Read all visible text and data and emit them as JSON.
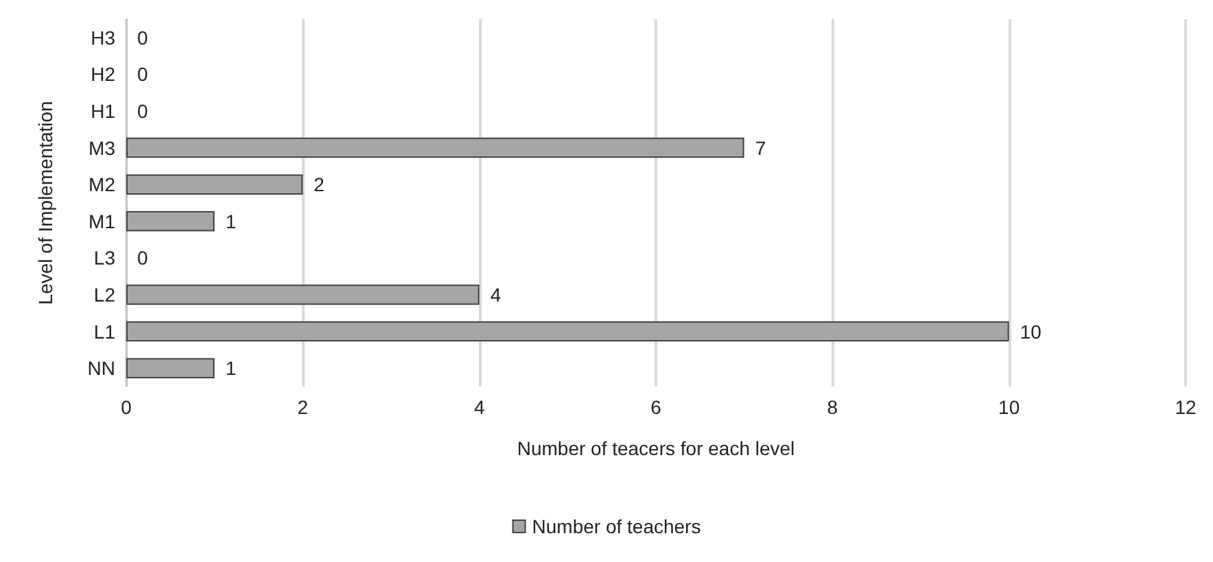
{
  "chart_data": {
    "type": "bar",
    "orientation": "horizontal",
    "xlabel": "Number of teacers for each level",
    "ylabel": "Level of Implementation",
    "categories": [
      "H3",
      "H2",
      "H1",
      "M3",
      "M2",
      "M1",
      "L3",
      "L2",
      "L1",
      "NN"
    ],
    "series": [
      {
        "name": "Number of teachers",
        "color": "#a6a6a6",
        "values": [
          0,
          0,
          0,
          7,
          2,
          1,
          0,
          4,
          10,
          1
        ]
      }
    ],
    "xlim": [
      0,
      12
    ],
    "xticks": [
      0,
      2,
      4,
      6,
      8,
      10,
      12
    ],
    "grid": "x",
    "legend": "bottom",
    "data_labels": true
  }
}
